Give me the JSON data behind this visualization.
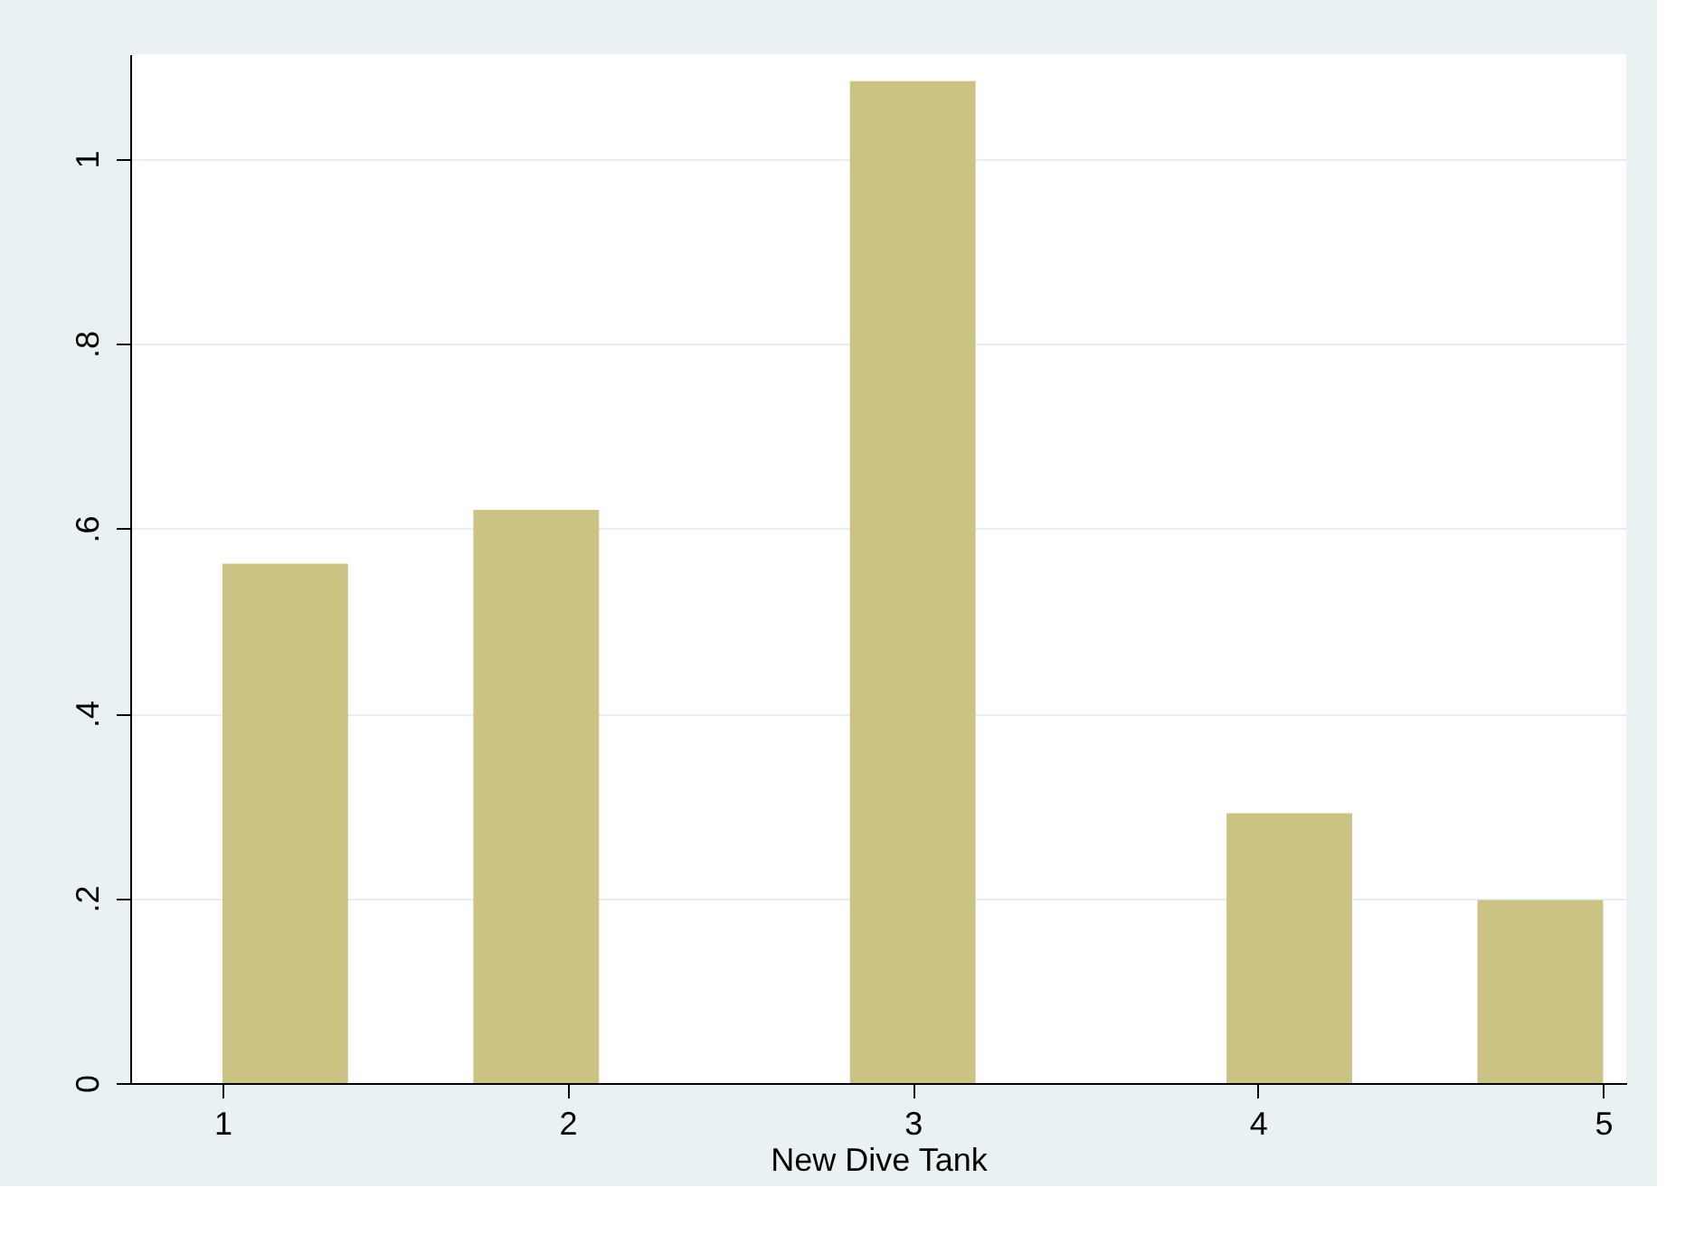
{
  "chart_data": {
    "type": "histogram",
    "xlabel": "New Dive Tank",
    "bins": [
      1,
      1.364,
      1.727,
      2.091,
      2.455,
      2.818,
      3.182,
      3.545,
      3.909,
      4.273,
      4.636,
      5
    ],
    "values": [
      0.562,
      0,
      0.62,
      0,
      0,
      1.084,
      0,
      0,
      0.292,
      0,
      0.198
    ],
    "color": "#cbc383",
    "xlim": [
      0.733,
      5.067
    ],
    "xticks": [
      1,
      2,
      3,
      4,
      5
    ],
    "ylim": [
      0,
      1.113
    ],
    "yticks": [
      0,
      {
        "value": 0.2,
        "label": ".2"
      },
      {
        "value": 0.4,
        "label": ".4"
      },
      {
        "value": 0.6,
        "label": ".6"
      },
      {
        "value": 0.8,
        "label": ".8"
      },
      1
    ],
    "grid": "y"
  }
}
